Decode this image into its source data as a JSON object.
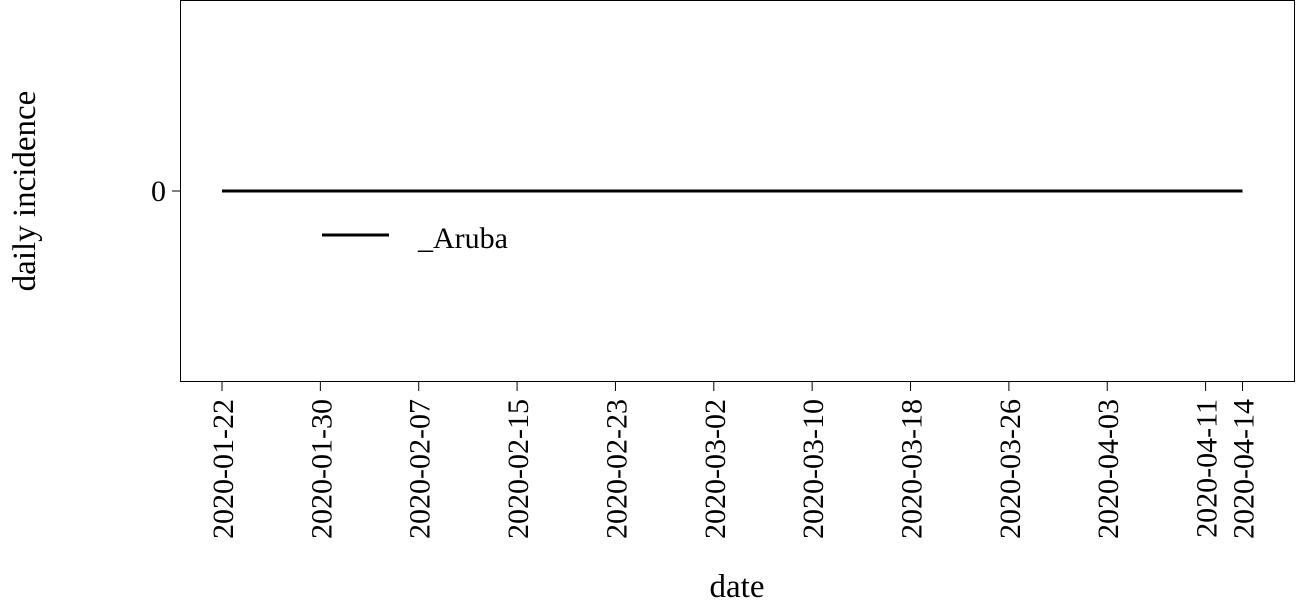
{
  "chart_data": {
    "type": "line",
    "xlabel": "date",
    "ylabel": "daily incidence",
    "x_ticks": [
      "2020-01-22",
      "2020-01-30",
      "2020-02-07",
      "2020-02-15",
      "2020-02-23",
      "2020-03-02",
      "2020-03-10",
      "2020-03-18",
      "2020-03-26",
      "2020-04-03",
      "2020-04-11",
      "2020-04-14"
    ],
    "x_range": [
      "2020-01-19",
      "2020-04-15"
    ],
    "y_ticks": [
      0
    ],
    "series": [
      {
        "name": "_Aruba",
        "color": "#000000",
        "points": [
          {
            "x": "2020-01-22",
            "y": 0
          },
          {
            "x": "2020-04-14",
            "y": 0
          }
        ]
      }
    ],
    "legend_position": "upper-left",
    "grid": false
  }
}
